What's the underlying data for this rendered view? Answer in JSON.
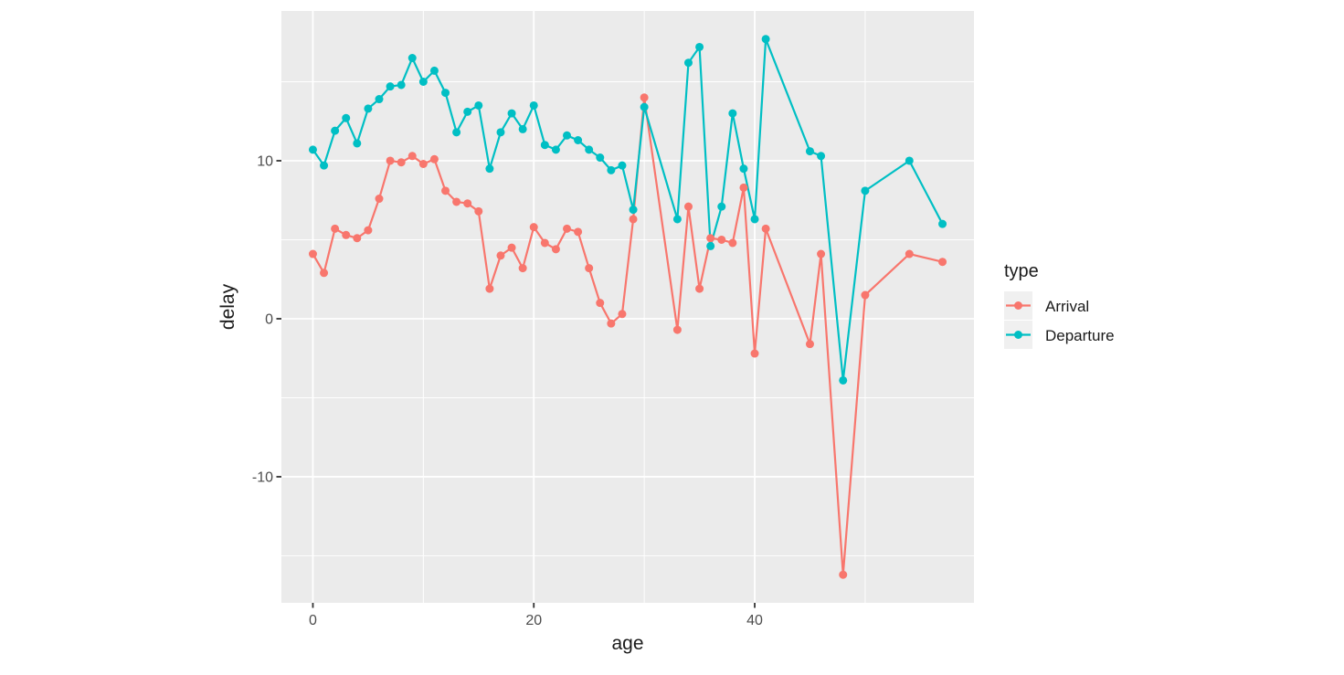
{
  "figure": {
    "background": "#FFFFFF",
    "panel_background": "#EBEBEB",
    "grid_color": "#FFFFFF",
    "tick_mark_color": "#333333",
    "tick_label_color": "#4D4D4D"
  },
  "legend": {
    "title": "type",
    "key_background": "#F0F0F0",
    "entries": [
      {
        "label": "Arrival",
        "color": "#F8766D"
      },
      {
        "label": "Departure",
        "color": "#00BFC4"
      }
    ]
  },
  "chart_data": {
    "type": "line",
    "title": "",
    "xlabel": "age",
    "ylabel": "delay",
    "x": [
      0,
      1,
      2,
      3,
      4,
      5,
      6,
      7,
      8,
      9,
      10,
      11,
      12,
      13,
      14,
      15,
      16,
      17,
      18,
      19,
      20,
      21,
      22,
      23,
      24,
      25,
      26,
      27,
      28,
      29,
      30,
      33,
      34,
      35,
      36,
      37,
      38,
      39,
      40,
      41,
      45,
      46,
      48,
      50,
      54,
      57
    ],
    "series": [
      {
        "name": "Arrival",
        "color": "#F8766D",
        "values": [
          4.1,
          2.9,
          5.7,
          5.3,
          5.1,
          5.6,
          7.6,
          10.0,
          9.9,
          10.3,
          9.8,
          10.1,
          8.1,
          7.4,
          7.3,
          6.8,
          1.9,
          4.0,
          4.5,
          3.2,
          5.8,
          4.8,
          4.4,
          5.7,
          5.5,
          3.2,
          1.0,
          -0.3,
          0.3,
          6.3,
          14.0,
          -0.7,
          7.1,
          1.9,
          5.1,
          5.0,
          4.8,
          8.3,
          -2.2,
          5.7,
          -1.6,
          4.1,
          -16.2,
          1.5,
          4.1,
          3.6
        ]
      },
      {
        "name": "Departure",
        "color": "#00BFC4",
        "values": [
          10.7,
          9.7,
          11.9,
          12.7,
          11.1,
          13.3,
          13.9,
          14.7,
          14.8,
          16.5,
          15.0,
          15.7,
          14.3,
          11.8,
          13.1,
          13.5,
          9.5,
          11.8,
          13.0,
          12.0,
          13.5,
          11.0,
          10.7,
          11.6,
          11.3,
          10.7,
          10.2,
          9.4,
          9.7,
          6.9,
          13.4,
          6.3,
          16.2,
          17.2,
          4.6,
          7.1,
          13.0,
          9.5,
          6.3,
          17.7,
          10.6,
          10.3,
          -3.9,
          8.1,
          10.0,
          6.0
        ]
      }
    ],
    "x_ticks": [
      0,
      20,
      40
    ],
    "x_minor_ticks": [
      10,
      30,
      50
    ],
    "y_ticks": [
      -10,
      0,
      10
    ],
    "y_minor_ticks": [
      -15,
      -5,
      5,
      15
    ],
    "xlim": [
      -2.85,
      59.85
    ],
    "ylim": [
      -17.98,
      19.48
    ],
    "grid": true,
    "legend_position": "right"
  }
}
